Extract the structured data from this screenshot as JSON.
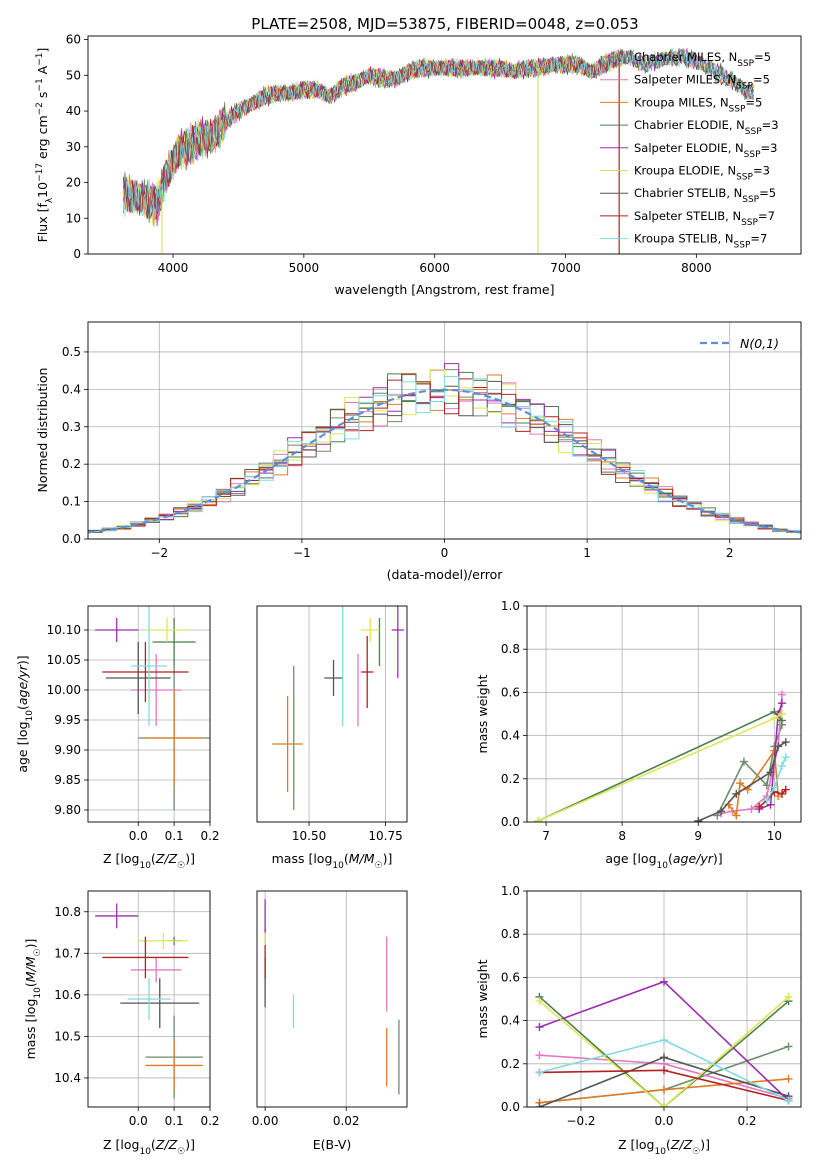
{
  "figure_title": "PLATE=2508, MJD=53875, FIBERID=0048, z=0.053",
  "series_colors": [
    "#6b8e6b",
    "#e377c2",
    "#e07b24",
    "#4a7f4a",
    "#9b2fae",
    "#dde55a",
    "#555555",
    "#b22222",
    "#80dbe0"
  ],
  "legend_labels": [
    "Chabrier MILES, N_SSP=5",
    "Salpeter MILES, N_SSP=5",
    "Kroupa MILES, N_SSP=5",
    "Chabrier ELODIE, N_SSP=3",
    "Salpeter ELODIE, N_SSP=3",
    "Kroupa ELODIE, N_SSP=3",
    "Chabrier STELIB, N_SSP=5",
    "Salpeter STELIB, N_SSP=7",
    "Kroupa STELIB, N_SSP=7"
  ],
  "chart_data": [
    {
      "panel": "spectrum",
      "type": "line",
      "xlabel": "wavelength [Angstrom, rest frame]",
      "ylabel": "Flux [f_λ 10^-17 erg cm^-2 s^-1 A^-1]",
      "xlim": [
        3350,
        8800
      ],
      "ylim": [
        0,
        61
      ],
      "xticks": [
        4000,
        5000,
        6000,
        7000,
        8000
      ],
      "yticks": [
        0,
        10,
        20,
        30,
        40,
        50,
        60
      ],
      "continuum": [
        [
          3620,
          17
        ],
        [
          3700,
          16
        ],
        [
          3800,
          15
        ],
        [
          3880,
          14
        ],
        [
          3950,
          22
        ],
        [
          4050,
          29
        ],
        [
          4200,
          32
        ],
        [
          4300,
          33
        ],
        [
          4400,
          37
        ],
        [
          4500,
          40
        ],
        [
          4600,
          42
        ],
        [
          4700,
          44
        ],
        [
          4800,
          45
        ],
        [
          4900,
          45
        ],
        [
          5000,
          46
        ],
        [
          5100,
          46
        ],
        [
          5200,
          44
        ],
        [
          5300,
          47
        ],
        [
          5400,
          48
        ],
        [
          5500,
          50
        ],
        [
          5600,
          49
        ],
        [
          5700,
          49
        ],
        [
          5800,
          51
        ],
        [
          5900,
          52
        ],
        [
          6000,
          52
        ],
        [
          6100,
          52
        ],
        [
          6200,
          52
        ],
        [
          6300,
          52
        ],
        [
          6400,
          52
        ],
        [
          6500,
          52
        ],
        [
          6600,
          51
        ],
        [
          6700,
          52
        ],
        [
          6800,
          52
        ],
        [
          6900,
          53
        ],
        [
          7000,
          53
        ],
        [
          7100,
          53
        ],
        [
          7200,
          51
        ],
        [
          7300,
          53
        ],
        [
          7400,
          55
        ],
        [
          7500,
          55
        ],
        [
          7600,
          53
        ],
        [
          7700,
          54
        ],
        [
          7800,
          55
        ],
        [
          7900,
          55
        ],
        [
          8000,
          54
        ],
        [
          8100,
          52
        ],
        [
          8200,
          50
        ],
        [
          8300,
          48
        ],
        [
          8400,
          45
        ]
      ],
      "drops": [
        {
          "x": 3915,
          "y": 0,
          "series": 5
        },
        {
          "x": 6790,
          "y": 0,
          "series": 5
        },
        {
          "x": 7410,
          "y": 0,
          "series": 7
        }
      ],
      "legend": "upper right"
    },
    {
      "panel": "residual histogram",
      "type": "line",
      "xlabel": "(data-model)/error",
      "ylabel": "Normed distribution",
      "xlim": [
        -2.5,
        2.5
      ],
      "ylim": [
        0,
        0.58
      ],
      "xticks": [
        -2,
        -1,
        0,
        1,
        2
      ],
      "yticks": [
        0.0,
        0.1,
        0.2,
        0.3,
        0.4,
        0.5
      ],
      "reference_label": "N(0,1)",
      "bin_width": 0.1,
      "bin_start": -2.5,
      "grid": true
    },
    {
      "panel": "age vs Z",
      "type": "scatter",
      "xlabel": "Z [log10(Z/Z☉)]",
      "ylabel": "age [log10(age/yr)]",
      "xlim": [
        -0.14,
        0.2
      ],
      "ylim": [
        9.78,
        10.14
      ],
      "xticks": [
        0.0,
        0.1,
        0.2
      ],
      "yticks": [
        9.8,
        9.85,
        9.9,
        9.95,
        10.0,
        10.05,
        10.1
      ],
      "points": [
        {
          "x": 0.1,
          "y": 9.92,
          "xerr": 0.1,
          "yerr": 0.12,
          "series": 0
        },
        {
          "x": 0.05,
          "y": 10.0,
          "xerr": 0.07,
          "yerr": 0.06,
          "series": 1
        },
        {
          "x": 0.1,
          "y": 9.92,
          "xerr": 0.08,
          "yerr": 0.08,
          "series": 2
        },
        {
          "x": 0.1,
          "y": 10.08,
          "xerr": 0.06,
          "yerr": 0.04,
          "series": 3
        },
        {
          "x": -0.06,
          "y": 10.1,
          "xerr": 0.06,
          "yerr": 0.02,
          "series": 4
        },
        {
          "x": 0.08,
          "y": 10.1,
          "xerr": 0.06,
          "yerr": 0.02,
          "series": 5
        },
        {
          "x": 0.0,
          "y": 10.02,
          "xerr": 0.09,
          "yerr": 0.06,
          "series": 6
        },
        {
          "x": 0.02,
          "y": 10.03,
          "xerr": 0.12,
          "yerr": 0.05,
          "series": 7
        },
        {
          "x": 0.03,
          "y": 10.04,
          "xerr": 0.05,
          "yerr": 0.1,
          "series": 8
        }
      ]
    },
    {
      "panel": "age vs mass",
      "type": "scatter",
      "xlabel": "mass [log10(M/M☉)]",
      "ylabel": "",
      "xlim": [
        10.33,
        10.82
      ],
      "ylim": [
        9.78,
        10.14
      ],
      "xticks": [
        10.5,
        10.75
      ],
      "points": [
        {
          "x": 10.45,
          "y": 9.92,
          "xerr": 0.0,
          "yerr": 0.12,
          "series": 0
        },
        {
          "x": 10.66,
          "y": 10.0,
          "xerr": 0.0,
          "yerr": 0.06,
          "series": 1
        },
        {
          "x": 10.43,
          "y": 9.91,
          "xerr": 0.05,
          "yerr": 0.08,
          "series": 2
        },
        {
          "x": 10.73,
          "y": 10.08,
          "xerr": 0.0,
          "yerr": 0.04,
          "series": 3
        },
        {
          "x": 10.79,
          "y": 10.1,
          "xerr": 0.02,
          "yerr": 0.08,
          "series": 4
        },
        {
          "x": 10.7,
          "y": 10.1,
          "xerr": 0.03,
          "yerr": 0.02,
          "series": 5
        },
        {
          "x": 10.58,
          "y": 10.02,
          "xerr": 0.03,
          "yerr": 0.03,
          "series": 6
        },
        {
          "x": 10.69,
          "y": 10.03,
          "xerr": 0.02,
          "yerr": 0.06,
          "series": 7
        },
        {
          "x": 10.61,
          "y": 10.04,
          "xerr": 0.0,
          "yerr": 0.1,
          "series": 8
        }
      ]
    },
    {
      "panel": "mass weight vs age",
      "type": "line",
      "xlabel": "age [log10(age/yr)]",
      "ylabel": "mass weight",
      "xlim": [
        6.75,
        10.35
      ],
      "ylim": [
        0,
        1
      ],
      "xticks": [
        7,
        8,
        9,
        10
      ],
      "yticks": [
        0.0,
        0.2,
        0.4,
        0.6,
        0.8,
        1.0
      ],
      "series": [
        {
          "x": [
            9.25,
            9.6,
            9.9,
            10.0,
            10.1
          ],
          "y": [
            0.03,
            0.28,
            0.17,
            0.35,
            0.45
          ],
          "series": 0
        },
        {
          "x": [
            9.3,
            9.45,
            9.7,
            9.9,
            10.05,
            10.1
          ],
          "y": [
            0.04,
            0.05,
            0.06,
            0.12,
            0.35,
            0.59
          ],
          "series": 1
        },
        {
          "x": [
            9.4,
            9.5,
            9.55,
            9.65,
            10.0,
            10.05
          ],
          "y": [
            0.08,
            0.03,
            0.18,
            0.15,
            0.33,
            0.12
          ],
          "series": 2
        },
        {
          "x": [
            6.9,
            10.0,
            10.1
          ],
          "y": [
            0.005,
            0.51,
            0.47
          ],
          "series": 3
        },
        {
          "x": [
            9.8,
            9.95,
            10.05,
            10.1
          ],
          "y": [
            0.06,
            0.08,
            0.5,
            0.55
          ],
          "series": 4
        },
        {
          "x": [
            6.9,
            10.0,
            10.1
          ],
          "y": [
            0.005,
            0.48,
            0.5
          ],
          "series": 5
        },
        {
          "x": [
            9.0,
            9.3,
            9.5,
            9.95,
            10.05,
            10.15
          ],
          "y": [
            0.005,
            0.05,
            0.13,
            0.23,
            0.35,
            0.37
          ],
          "series": 6
        },
        {
          "x": [
            9.8,
            9.9,
            10.0,
            10.1,
            10.15
          ],
          "y": [
            0.07,
            0.1,
            0.14,
            0.13,
            0.15
          ],
          "series": 7
        },
        {
          "x": [
            9.9,
            10.0,
            10.1,
            10.15
          ],
          "y": [
            0.1,
            0.16,
            0.26,
            0.3
          ],
          "series": 8
        }
      ]
    },
    {
      "panel": "mass vs Z",
      "type": "scatter",
      "xlabel": "Z [log10(Z/Z☉)]",
      "ylabel": "mass [log10(M/M☉)]",
      "xlim": [
        -0.14,
        0.2
      ],
      "ylim": [
        10.33,
        10.85
      ],
      "xticks": [
        0.0,
        0.1,
        0.2
      ],
      "yticks": [
        10.4,
        10.5,
        10.6,
        10.7,
        10.8
      ],
      "points": [
        {
          "x": 0.1,
          "y": 10.45,
          "xerr": 0.08,
          "yerr": 0.1,
          "series": 0
        },
        {
          "x": 0.05,
          "y": 10.66,
          "xerr": 0.07,
          "yerr": 0.03,
          "series": 1
        },
        {
          "x": 0.1,
          "y": 10.43,
          "xerr": 0.08,
          "yerr": 0.06,
          "series": 2
        },
        {
          "x": 0.1,
          "y": 10.73,
          "xerr": 0.02,
          "yerr": 0.01,
          "series": 3
        },
        {
          "x": -0.06,
          "y": 10.79,
          "xerr": 0.06,
          "yerr": 0.03,
          "series": 4
        },
        {
          "x": 0.07,
          "y": 10.73,
          "xerr": 0.07,
          "yerr": 0.02,
          "series": 5
        },
        {
          "x": 0.06,
          "y": 10.58,
          "xerr": 0.11,
          "yerr": 0.06,
          "series": 6
        },
        {
          "x": 0.02,
          "y": 10.69,
          "xerr": 0.12,
          "yerr": 0.05,
          "series": 7
        },
        {
          "x": 0.03,
          "y": 10.59,
          "xerr": 0.06,
          "yerr": 0.05,
          "series": 8
        }
      ]
    },
    {
      "panel": "mass vs E(B-V)",
      "type": "scatter",
      "xlabel": "E(B-V)",
      "ylabel": "",
      "xlim": [
        -0.002,
        0.035
      ],
      "ylim": [
        10.33,
        10.85
      ],
      "xticks": [
        0.0,
        0.02
      ],
      "points": [
        {
          "x": 0.033,
          "y": 10.45,
          "xerr": 0,
          "yerr": 0.09,
          "series": 0
        },
        {
          "x": 0.03,
          "y": 10.65,
          "xerr": 0,
          "yerr": 0.09,
          "series": 1
        },
        {
          "x": 0.03,
          "y": 10.45,
          "xerr": 0,
          "yerr": 0.07,
          "series": 2
        },
        {
          "x": 0.0,
          "y": 10.74,
          "xerr": 0,
          "yerr": 0.02,
          "series": 3
        },
        {
          "x": 0.0,
          "y": 10.79,
          "xerr": 0,
          "yerr": 0.04,
          "series": 4
        },
        {
          "x": 0.0,
          "y": 10.73,
          "xerr": 0,
          "yerr": 0.02,
          "series": 5
        },
        {
          "x": 0.0,
          "y": 10.63,
          "xerr": 0,
          "yerr": 0.06,
          "series": 6
        },
        {
          "x": 0.0,
          "y": 10.68,
          "xerr": 0,
          "yerr": 0.04,
          "series": 7
        },
        {
          "x": 0.007,
          "y": 10.56,
          "xerr": 0,
          "yerr": 0.04,
          "series": 8
        }
      ]
    },
    {
      "panel": "mass weight vs Z",
      "type": "line",
      "xlabel": "Z [log10(Z/Z☉)]",
      "ylabel": "mass weight",
      "xlim": [
        -0.33,
        0.33
      ],
      "ylim": [
        0,
        1
      ],
      "xticks": [
        -0.2,
        0.0,
        0.2
      ],
      "yticks": [
        0.0,
        0.2,
        0.4,
        0.6,
        0.8,
        1.0
      ],
      "series": [
        {
          "x": [
            -0.3,
            0.0,
            0.3
          ],
          "y": [
            0.02,
            0.08,
            0.28
          ],
          "series": 0
        },
        {
          "x": [
            -0.3,
            0.0,
            0.3
          ],
          "y": [
            0.24,
            0.2,
            0.04
          ],
          "series": 1
        },
        {
          "x": [
            -0.3,
            0.0,
            0.3
          ],
          "y": [
            0.02,
            0.08,
            0.13
          ],
          "series": 2
        },
        {
          "x": [
            -0.3,
            0.0,
            0.3
          ],
          "y": [
            0.51,
            0.0,
            0.49
          ],
          "series": 3
        },
        {
          "x": [
            -0.3,
            0.0,
            0.3
          ],
          "y": [
            0.37,
            0.58,
            0.03
          ],
          "series": 4
        },
        {
          "x": [
            -0.3,
            0.0,
            0.3
          ],
          "y": [
            0.49,
            0.0,
            0.51
          ],
          "series": 5
        },
        {
          "x": [
            -0.3,
            0.0,
            0.3
          ],
          "y": [
            0.0,
            0.23,
            0.05
          ],
          "series": 6
        },
        {
          "x": [
            -0.3,
            0.0,
            0.3
          ],
          "y": [
            0.16,
            0.17,
            0.03
          ],
          "series": 7
        },
        {
          "x": [
            -0.3,
            0.0,
            0.3
          ],
          "y": [
            0.16,
            0.31,
            0.03
          ],
          "series": 8
        }
      ]
    }
  ]
}
